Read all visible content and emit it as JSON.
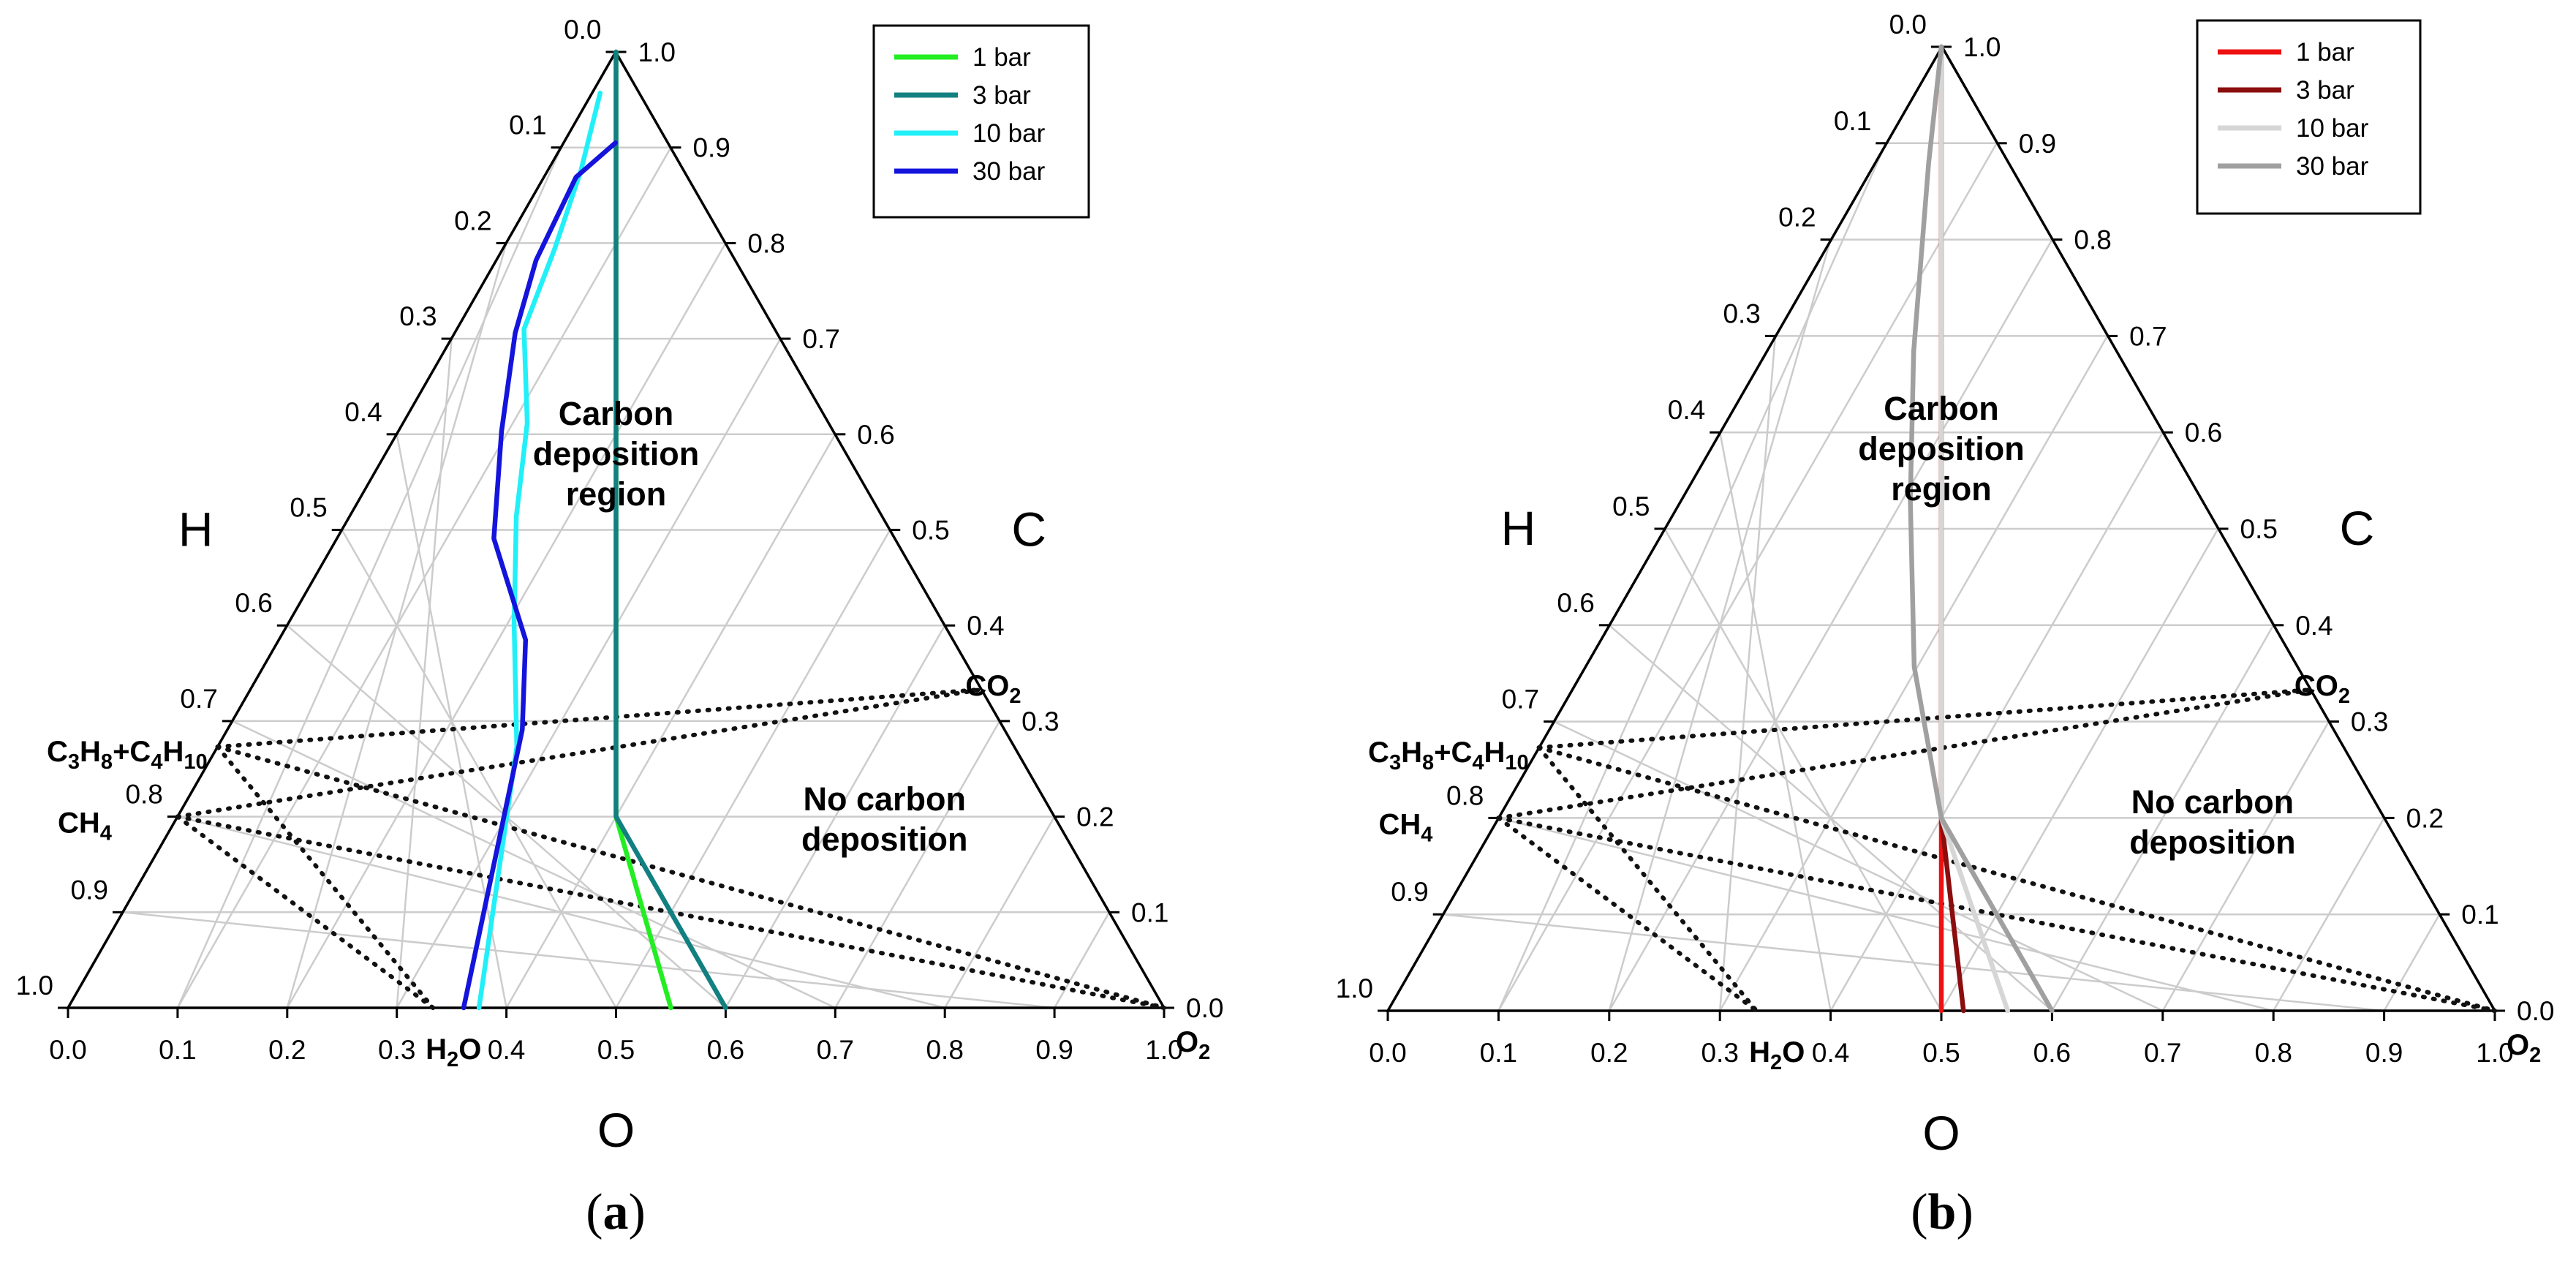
{
  "chart_data": [
    {
      "type": "ternary-line",
      "panel_label": "a",
      "axes": {
        "left": "H",
        "right": "C",
        "bottom": "O"
      },
      "ticks": [
        "0.0",
        "0.1",
        "0.2",
        "0.3",
        "0.4",
        "0.5",
        "0.6",
        "0.7",
        "0.8",
        "0.9",
        "1.0"
      ],
      "region_labels": [
        [
          "Carbon",
          "deposition",
          "region"
        ],
        [
          "No carbon",
          "deposition"
        ]
      ],
      "legend_position": "top-right",
      "species": [
        {
          "id": "propane_butane",
          "label": [
            "C",
            "3",
            "H",
            "8",
            "+C",
            "4",
            "H",
            "10"
          ],
          "H": 0.727,
          "C": 0.273,
          "O": 0.0
        },
        {
          "id": "methane",
          "label": [
            "CH",
            "4"
          ],
          "H": 0.8,
          "C": 0.2,
          "O": 0.0
        },
        {
          "id": "water",
          "label": [
            "H",
            "2",
            "O"
          ],
          "H": 0.667,
          "C": 0.0,
          "O": 0.333
        },
        {
          "id": "carbon_dioxide",
          "label": [
            "CO",
            "2"
          ],
          "H": 0.0,
          "C": 0.333,
          "O": 0.667
        },
        {
          "id": "oxygen",
          "label": [
            "O",
            "2"
          ],
          "H": 0.0,
          "C": 0.0,
          "O": 1.0
        }
      ],
      "dotted_lines": [
        [
          "propane_butane",
          "carbon_dioxide"
        ],
        [
          "propane_butane",
          "oxygen"
        ],
        [
          "propane_butane",
          "water"
        ],
        [
          "methane",
          "carbon_dioxide"
        ],
        [
          "methane",
          "oxygen"
        ],
        [
          "methane",
          "water"
        ]
      ],
      "series": [
        {
          "name": "1 bar",
          "color": "#22ee22",
          "points": [
            [
              0.0,
              1.0
            ],
            [
              0.2,
              0.6
            ],
            [
              0.4,
              0.2
            ],
            [
              0.55,
              0.0
            ]
          ]
        },
        {
          "name": "3 bar",
          "color": "#128080",
          "points": [
            [
              0.0,
              1.0
            ],
            [
              0.2,
              0.6
            ],
            [
              0.4,
              0.2
            ],
            [
              0.6,
              0.0
            ]
          ]
        },
        {
          "name": "10 bar",
          "color": "#22f0f8",
          "points": [
            [
              0.007,
              0.957
            ],
            [
              0.03,
              0.876
            ],
            [
              0.047,
              0.794
            ],
            [
              0.061,
              0.71
            ],
            [
              0.113,
              0.612
            ],
            [
              0.152,
              0.514
            ],
            [
              0.206,
              0.402
            ],
            [
              0.273,
              0.273
            ],
            [
              0.375,
              0.0
            ]
          ]
        },
        {
          "name": "30 bar",
          "color": "#1414dc",
          "points": [
            [
              0.047,
              0.905
            ],
            [
              0.029,
              0.869
            ],
            [
              0.036,
              0.782
            ],
            [
              0.055,
              0.706
            ],
            [
              0.094,
              0.603
            ],
            [
              0.143,
              0.491
            ],
            [
              0.225,
              0.385
            ],
            [
              0.269,
              0.291
            ],
            [
              0.361,
              0.0
            ]
          ]
        }
      ]
    },
    {
      "type": "ternary-line",
      "panel_label": "b",
      "axes": {
        "left": "H",
        "right": "C",
        "bottom": "O"
      },
      "ticks": [
        "0.0",
        "0.1",
        "0.2",
        "0.3",
        "0.4",
        "0.5",
        "0.6",
        "0.7",
        "0.8",
        "0.9",
        "1.0"
      ],
      "region_labels": [
        [
          "Carbon",
          "deposition",
          "region"
        ],
        [
          "No carbon",
          "deposition"
        ]
      ],
      "legend_position": "top-right",
      "species": [
        {
          "id": "propane_butane",
          "label": [
            "C",
            "3",
            "H",
            "8",
            "+C",
            "4",
            "H",
            "10"
          ],
          "H": 0.727,
          "C": 0.273,
          "O": 0.0
        },
        {
          "id": "methane",
          "label": [
            "CH",
            "4"
          ],
          "H": 0.8,
          "C": 0.2,
          "O": 0.0
        },
        {
          "id": "water",
          "label": [
            "H",
            "2",
            "O"
          ],
          "H": 0.667,
          "C": 0.0,
          "O": 0.333
        },
        {
          "id": "carbon_dioxide",
          "label": [
            "CO",
            "2"
          ],
          "H": 0.0,
          "C": 0.333,
          "O": 0.667
        },
        {
          "id": "oxygen",
          "label": [
            "O",
            "2"
          ],
          "H": 0.0,
          "C": 0.0,
          "O": 1.0
        }
      ],
      "dotted_lines": [
        [
          "propane_butane",
          "carbon_dioxide"
        ],
        [
          "propane_butane",
          "oxygen"
        ],
        [
          "propane_butane",
          "water"
        ],
        [
          "methane",
          "carbon_dioxide"
        ],
        [
          "methane",
          "oxygen"
        ],
        [
          "methane",
          "water"
        ]
      ],
      "series": [
        {
          "name": "1 bar",
          "color": "#ee1111",
          "points": [
            [
              0.0,
              1.0
            ],
            [
              0.2,
              0.6
            ],
            [
              0.4,
              0.2
            ],
            [
              0.5,
              0.0
            ]
          ]
        },
        {
          "name": "3 bar",
          "color": "#8b0e0e",
          "points": [
            [
              0.0,
              1.0
            ],
            [
              0.2,
              0.6
            ],
            [
              0.4,
              0.2
            ],
            [
              0.52,
              0.0
            ]
          ]
        },
        {
          "name": "10 bar",
          "color": "#d6d6d6",
          "points": [
            [
              0.0,
              1.0
            ],
            [
              0.2,
              0.6
            ],
            [
              0.4,
              0.2
            ],
            [
              0.56,
              0.0
            ]
          ]
        },
        {
          "name": "30 bar",
          "color": "#a0a0a0",
          "points": [
            [
              0.0,
              1.0
            ],
            [
              0.049,
              0.879
            ],
            [
              0.133,
              0.684
            ],
            [
              0.207,
              0.53
            ],
            [
              0.297,
              0.357
            ],
            [
              0.4,
              0.2
            ],
            [
              0.6,
              0.0
            ]
          ]
        }
      ]
    }
  ]
}
